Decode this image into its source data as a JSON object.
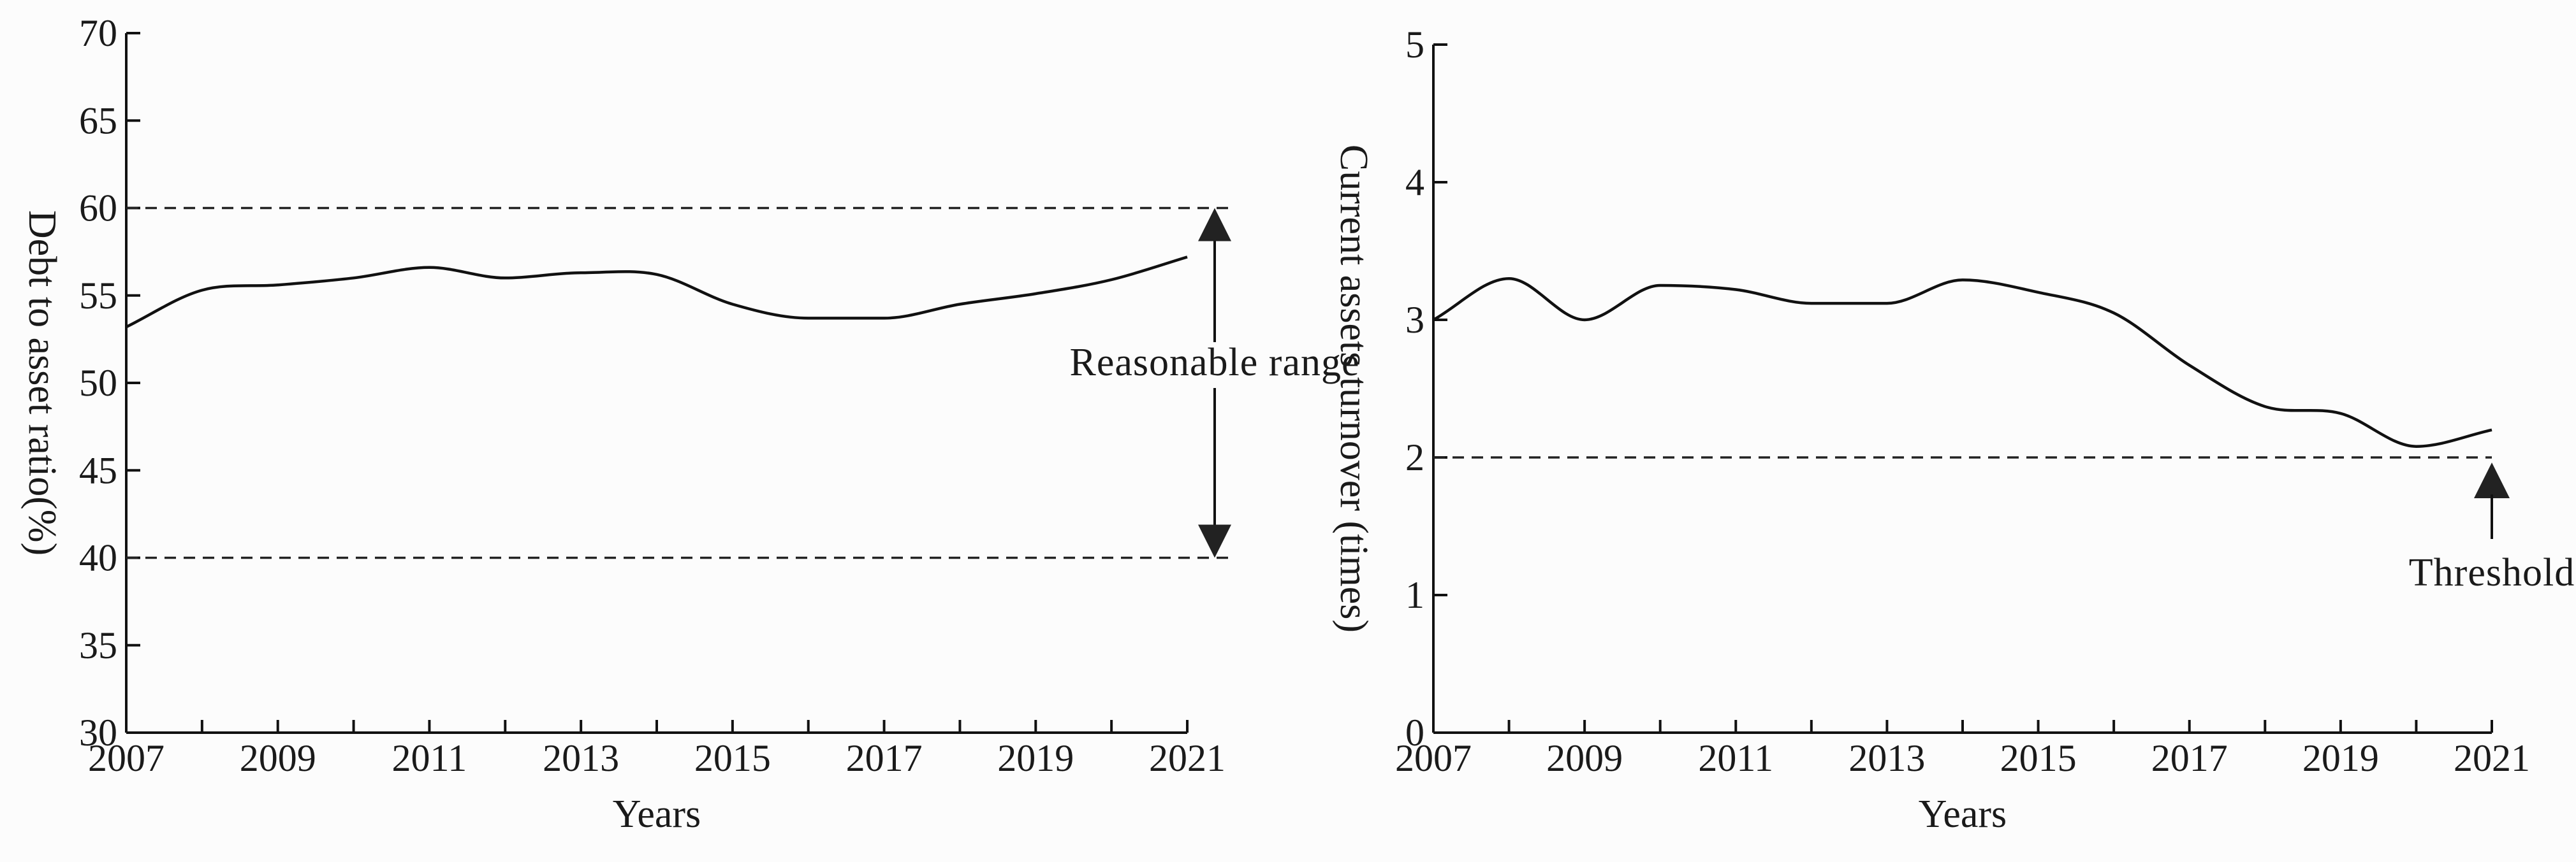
{
  "chart_data": [
    {
      "type": "line",
      "title": "",
      "xlabel": "Years",
      "ylabel": "Debt to asset ratio(%)",
      "x_tick_labels": [
        "2007",
        "2009",
        "2011",
        "2013",
        "2015",
        "2017",
        "2019",
        "2021"
      ],
      "y_tick_labels": [
        "30",
        "35",
        "40",
        "45",
        "50",
        "55",
        "60",
        "65",
        "70"
      ],
      "xlim": [
        2007,
        2021
      ],
      "ylim": [
        30,
        70
      ],
      "grid": false,
      "series": [
        {
          "x": [
            2007,
            2008,
            2009,
            2010,
            2011,
            2012,
            2013,
            2014,
            2015,
            2016,
            2017,
            2018,
            2019,
            2020,
            2021
          ],
          "values": [
            53.2,
            55.3,
            55.6,
            56.0,
            56.6,
            56.0,
            56.3,
            56.2,
            54.5,
            53.7,
            53.7,
            54.5,
            55.1,
            55.9,
            57.2
          ]
        }
      ],
      "reference_lines": [
        {
          "y": 60
        },
        {
          "y": 40
        }
      ],
      "annotation": {
        "text": "Reasonable range",
        "x": 2021.4,
        "y_from": 40,
        "y_to": 60
      }
    },
    {
      "type": "line",
      "title": "",
      "xlabel": "Years",
      "ylabel": "Current assets turnover (times)",
      "x_tick_labels": [
        "2007",
        "2009",
        "2011",
        "2013",
        "2015",
        "2017",
        "2019",
        "2021"
      ],
      "y_tick_labels": [
        "0",
        "1",
        "2",
        "3",
        "4",
        "5"
      ],
      "xlim": [
        2007,
        2021
      ],
      "ylim": [
        0,
        5
      ],
      "grid": false,
      "series": [
        {
          "x": [
            2007,
            2008,
            2009,
            2010,
            2011,
            2012,
            2013,
            2014,
            2015,
            2016,
            2017,
            2018,
            2019,
            2020,
            2021
          ],
          "values": [
            3.0,
            3.3,
            3.0,
            3.25,
            3.22,
            3.12,
            3.12,
            3.29,
            3.2,
            3.05,
            2.67,
            2.37,
            2.32,
            2.08,
            2.2
          ]
        }
      ],
      "reference_lines": [
        {
          "y": 2
        }
      ],
      "annotation": {
        "text": "Threshold",
        "x": 2021,
        "y_from": 2,
        "y_to": 1.05
      }
    }
  ]
}
